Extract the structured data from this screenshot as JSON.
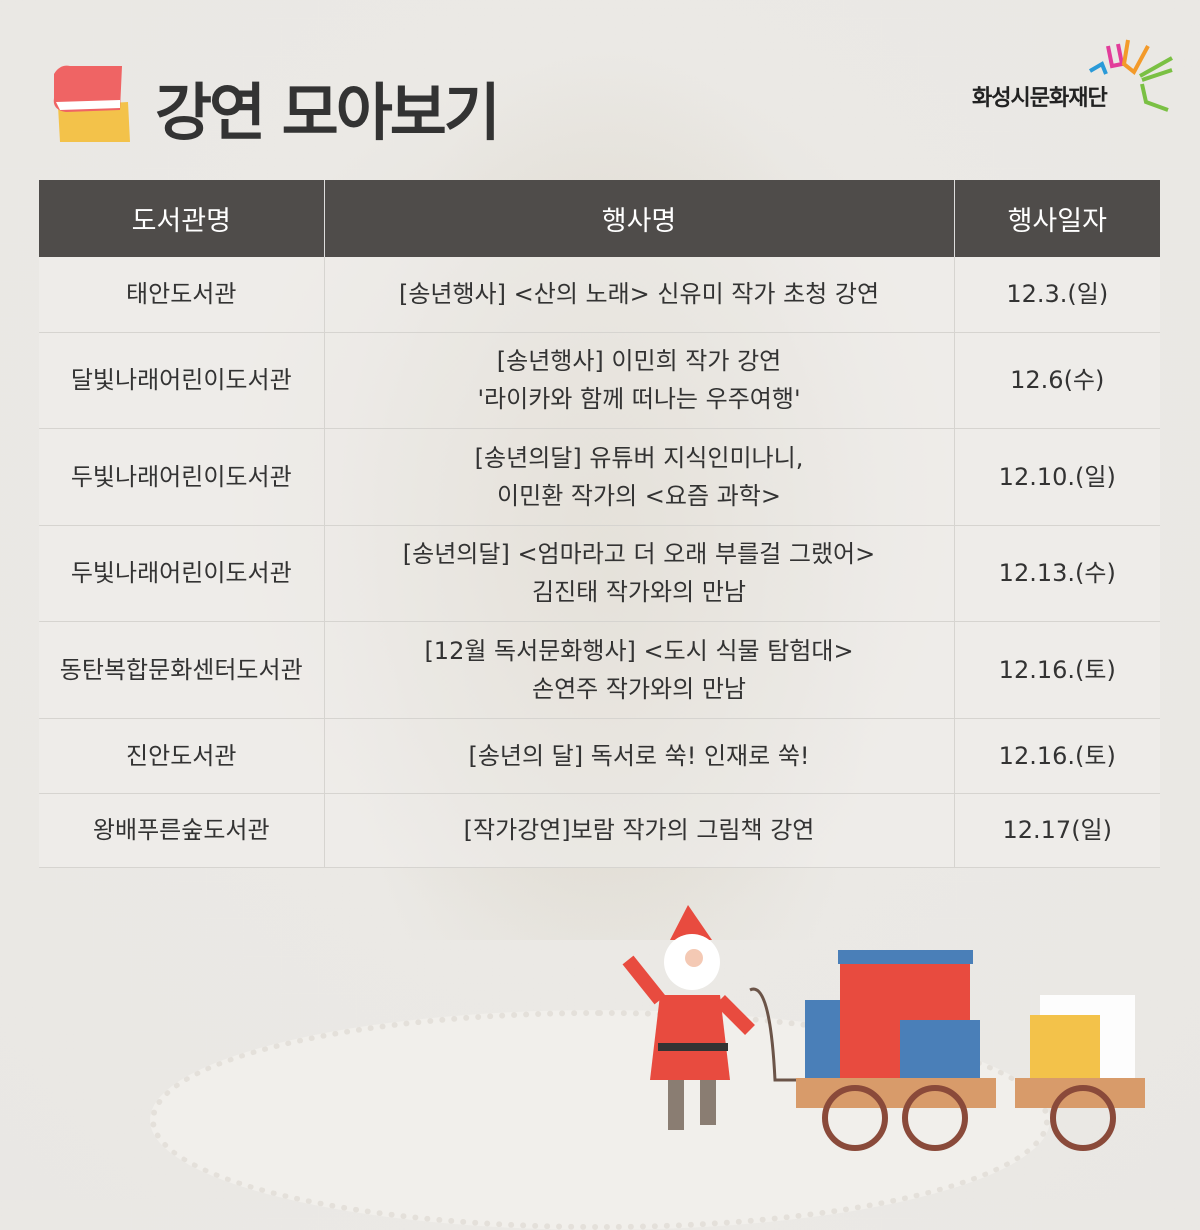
{
  "header": {
    "title": "강연 모아보기",
    "logo_text": "화성시문화재단",
    "icon": "book-stack-icon"
  },
  "table": {
    "columns": [
      "도서관명",
      "행사명",
      "행사일자"
    ],
    "rows": [
      {
        "library": "태안도서관",
        "event": [
          "[송년행사] <산의 노래> 신유미 작가 초청 강연"
        ],
        "date": "12.3.(일)"
      },
      {
        "library": "달빛나래어린이도서관",
        "event": [
          "[송년행사] 이민희 작가 강연",
          "'라이카와 함께 떠나는 우주여행'"
        ],
        "date": "12.6(수)"
      },
      {
        "library": "두빛나래어린이도서관",
        "event": [
          "[송년의달] 유튜버 지식인미나니,",
          "이민환 작가의 <요즘 과학>"
        ],
        "date": "12.10.(일)"
      },
      {
        "library": "두빛나래어린이도서관",
        "event": [
          "[송년의달] <엄마라고 더 오래 부를걸 그랬어>",
          "김진태 작가와의 만남"
        ],
        "date": "12.13.(수)"
      },
      {
        "library": "동탄복합문화센터도서관",
        "event": [
          "[12월 독서문화행사] <도시 식물 탐험대>",
          "손연주 작가와의 만남"
        ],
        "date": "12.16.(토)"
      },
      {
        "library": "진안도서관",
        "event": [
          "[송년의 달] 독서로 쑥! 인재로 쑥!"
        ],
        "date": "12.16.(토)"
      },
      {
        "library": "왕배푸른숲도서관",
        "event": [
          "[작가강연]보람 작가의 그림책 강연"
        ],
        "date": "12.17(일)"
      }
    ]
  },
  "colors": {
    "header_bg": "#4f4c4a",
    "background": "#ebe9e5"
  }
}
